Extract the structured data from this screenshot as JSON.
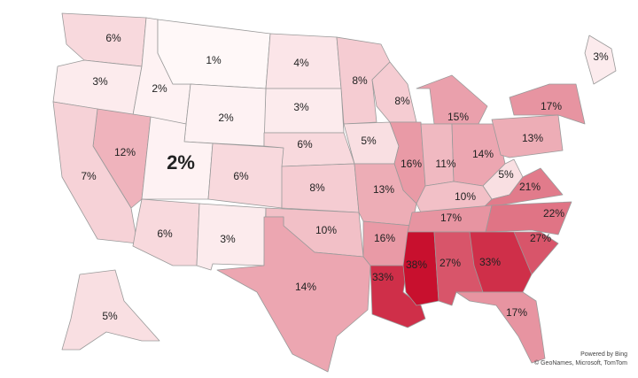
{
  "map": {
    "type": "choropleth",
    "color_low": "#fff8f8",
    "color_high": "#c8102e",
    "regions": [
      {
        "value": 6,
        "label": "6%"
      },
      {
        "value": 3,
        "label": "3%"
      },
      {
        "value": 2,
        "label": "2%"
      },
      {
        "value": 1,
        "label": "1%"
      },
      {
        "value": 4,
        "label": "4%"
      },
      {
        "value": 8,
        "label": "8%"
      },
      {
        "value": 3,
        "label": "3%"
      },
      {
        "value": 2,
        "label": "2%"
      },
      {
        "value": 8,
        "label": "8%"
      },
      {
        "value": 15,
        "label": "15%"
      },
      {
        "value": 17,
        "label": "17%"
      },
      {
        "value": 3,
        "label": "3%"
      },
      {
        "value": 12,
        "label": "12%"
      },
      {
        "value": 2,
        "label": "2%"
      },
      {
        "value": 7,
        "label": "7%"
      },
      {
        "value": 6,
        "label": "6%"
      },
      {
        "value": 6,
        "label": "6%"
      },
      {
        "value": 5,
        "label": "5%"
      },
      {
        "value": 16,
        "label": "16%"
      },
      {
        "value": 11,
        "label": "11%"
      },
      {
        "value": 14,
        "label": "14%"
      },
      {
        "value": 13,
        "label": "13%"
      },
      {
        "value": 5,
        "label": "5%"
      },
      {
        "value": 21,
        "label": "21%"
      },
      {
        "value": 8,
        "label": "8%"
      },
      {
        "value": 13,
        "label": "13%"
      },
      {
        "value": 10,
        "label": "10%"
      },
      {
        "value": 6,
        "label": "6%"
      },
      {
        "value": 3,
        "label": "3%"
      },
      {
        "value": 10,
        "label": "10%"
      },
      {
        "value": 16,
        "label": "16%"
      },
      {
        "value": 17,
        "label": "17%"
      },
      {
        "value": 22,
        "label": "22%"
      },
      {
        "value": 27,
        "label": "27%"
      },
      {
        "value": 14,
        "label": "14%"
      },
      {
        "value": 33,
        "label": "33%"
      },
      {
        "value": 38,
        "label": "38%"
      },
      {
        "value": 27,
        "label": "27%"
      },
      {
        "value": 33,
        "label": "33%"
      },
      {
        "value": 17,
        "label": "17%"
      },
      {
        "value": 5,
        "label": "5%"
      }
    ]
  },
  "credits": {
    "provider": "Powered by Bing",
    "sources": "© GeoNames, Microsoft, TomTom"
  }
}
